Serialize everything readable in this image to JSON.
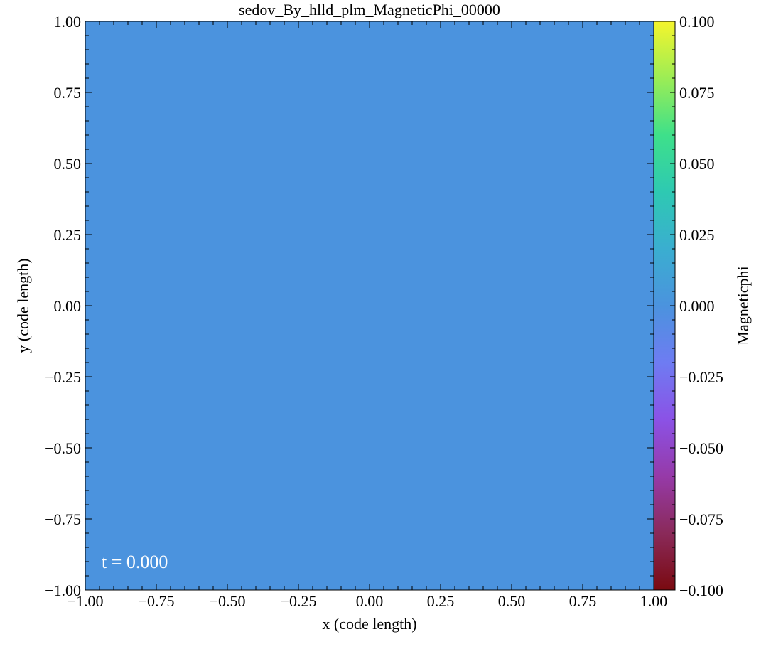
{
  "chart_data": {
    "type": "heatmap",
    "title": "sedov_By_hlld_plm_MagneticPhi_00000",
    "xlabel": "x  (code length)",
    "ylabel": "y  (code length)",
    "xlim": [
      -1.0,
      1.0
    ],
    "ylim": [
      -1.0,
      1.0
    ],
    "x_ticks": [
      -1.0,
      -0.75,
      -0.5,
      -0.25,
      0.0,
      0.25,
      0.5,
      0.75,
      1.0
    ],
    "x_tick_labels": [
      "−1.00",
      "−0.75",
      "−0.50",
      "−0.25",
      "0.00",
      "0.25",
      "0.50",
      "0.75",
      "1.00"
    ],
    "y_ticks": [
      -1.0,
      -0.75,
      -0.5,
      -0.25,
      0.0,
      0.25,
      0.5,
      0.75,
      1.0
    ],
    "y_tick_labels": [
      "−1.00",
      "−0.75",
      "−0.50",
      "−0.25",
      "0.00",
      "0.25",
      "0.50",
      "0.75",
      "1.00"
    ],
    "field_value": 0.0,
    "field_color": "#4b93de",
    "annotation": "t = 0.000",
    "colorbar": {
      "label": "Magneticphi",
      "range": [
        -0.1,
        0.1
      ],
      "ticks": [
        -0.1,
        -0.075,
        -0.05,
        -0.025,
        0.0,
        0.025,
        0.05,
        0.075,
        0.1
      ],
      "tick_labels": [
        "−0.100",
        "−0.075",
        "−0.050",
        "−0.025",
        "0.000",
        "0.025",
        "0.050",
        "0.075",
        "0.100"
      ],
      "colormap_stops": [
        "#7a0a10",
        "#8a2a5a",
        "#963aa8",
        "#8b52e6",
        "#6e7cf2",
        "#4b93de",
        "#3aaed0",
        "#2ec9b2",
        "#3ee08a",
        "#9ced55",
        "#f5f52c"
      ]
    }
  }
}
